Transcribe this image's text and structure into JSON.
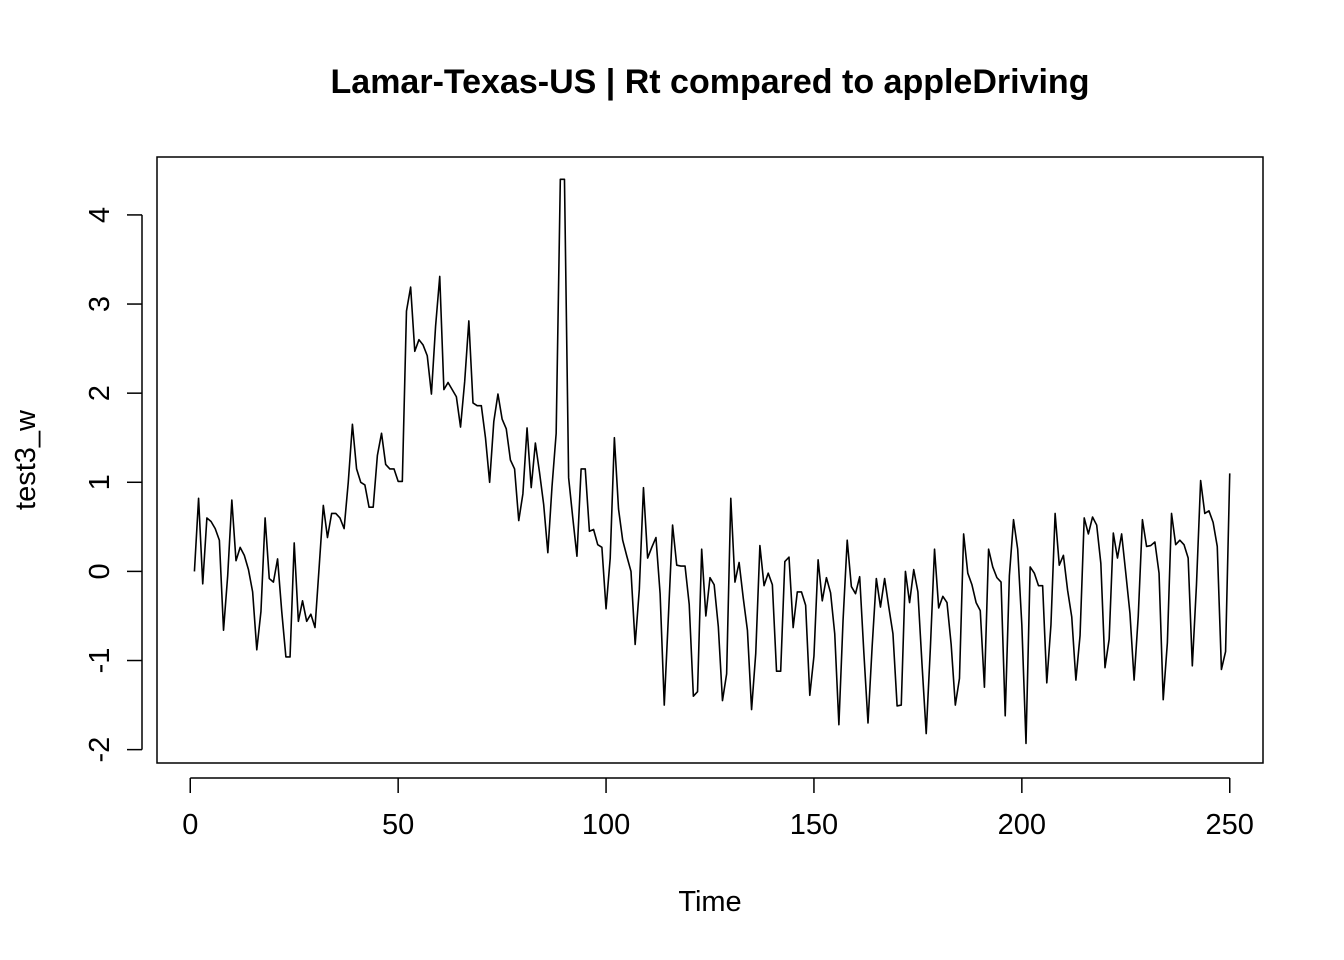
{
  "chart_data": {
    "type": "line",
    "title": "Lamar-Texas-US | Rt compared to appleDriving",
    "xlabel": "Time",
    "ylabel": "test3_w",
    "xlim": [
      -8,
      258
    ],
    "ylim": [
      -2.15,
      4.65
    ],
    "x_ticks": [
      "0",
      "50",
      "100",
      "150",
      "200",
      "250"
    ],
    "y_ticks": [
      "-2",
      "-1",
      "0",
      "1",
      "2",
      "3",
      "4"
    ],
    "grid": false,
    "series": [
      {
        "color": "#000000",
        "x_start": 1,
        "values": [
          0.0,
          0.82,
          -0.14,
          0.6,
          0.56,
          0.48,
          0.35,
          -0.66,
          -0.05,
          0.8,
          0.12,
          0.27,
          0.18,
          0.02,
          -0.23,
          -0.88,
          -0.45,
          0.6,
          -0.08,
          -0.12,
          0.14,
          -0.45,
          -0.96,
          -0.96,
          0.32,
          -0.56,
          -0.33,
          -0.56,
          -0.48,
          -0.63,
          0.05,
          0.74,
          0.38,
          0.65,
          0.65,
          0.6,
          0.48,
          1.0,
          1.65,
          1.15,
          1.0,
          0.97,
          0.72,
          0.72,
          1.3,
          1.55,
          1.2,
          1.15,
          1.15,
          1.01,
          1.01,
          2.92,
          3.19,
          2.47,
          2.6,
          2.54,
          2.42,
          1.99,
          2.75,
          3.31,
          2.04,
          2.12,
          2.04,
          1.96,
          1.62,
          2.13,
          2.81,
          1.89,
          1.86,
          1.86,
          1.5,
          1.0,
          1.68,
          1.99,
          1.71,
          1.6,
          1.25,
          1.15,
          0.57,
          0.87,
          1.61,
          0.94,
          1.44,
          1.11,
          0.75,
          0.21,
          0.95,
          1.55,
          4.4,
          4.4,
          1.05,
          0.6,
          0.17,
          1.15,
          1.15,
          0.45,
          0.47,
          0.3,
          0.27,
          -0.42,
          0.15,
          1.5,
          0.7,
          0.35,
          0.17,
          0.0,
          -0.82,
          -0.2,
          0.94,
          0.15,
          0.27,
          0.38,
          -0.25,
          -1.5,
          -0.5,
          0.52,
          0.07,
          0.06,
          0.06,
          -0.37,
          -1.4,
          -1.35,
          0.25,
          -0.5,
          -0.07,
          -0.15,
          -0.62,
          -1.45,
          -1.15,
          0.82,
          -0.12,
          0.1,
          -0.3,
          -0.66,
          -1.55,
          -0.92,
          0.29,
          -0.16,
          -0.02,
          -0.15,
          -1.12,
          -1.12,
          0.11,
          0.16,
          -0.63,
          -0.23,
          -0.23,
          -0.38,
          -1.39,
          -0.95,
          0.13,
          -0.33,
          -0.07,
          -0.24,
          -0.7,
          -1.72,
          -0.55,
          0.35,
          -0.17,
          -0.25,
          -0.06,
          -0.91,
          -1.7,
          -0.84,
          -0.08,
          -0.4,
          -0.08,
          -0.4,
          -0.7,
          -1.51,
          -1.5,
          0.0,
          -0.35,
          0.02,
          -0.23,
          -1.05,
          -1.82,
          -0.86,
          0.25,
          -0.41,
          -0.28,
          -0.35,
          -0.82,
          -1.5,
          -1.2,
          0.42,
          -0.02,
          -0.15,
          -0.35,
          -0.44,
          -1.3,
          0.25,
          0.05,
          -0.07,
          -0.12,
          -1.62,
          -0.05,
          0.58,
          0.25,
          -0.6,
          -1.93,
          0.05,
          -0.02,
          -0.16,
          -0.16,
          -1.25,
          -0.6,
          0.65,
          0.07,
          0.18,
          -0.21,
          -0.51,
          -1.22,
          -0.72,
          0.6,
          0.42,
          0.61,
          0.52,
          0.09,
          -1.08,
          -0.76,
          0.43,
          0.15,
          0.42,
          -0.02,
          -0.47,
          -1.22,
          -0.5,
          0.58,
          0.28,
          0.29,
          0.33,
          -0.02,
          -1.44,
          -0.8,
          0.65,
          0.3,
          0.35,
          0.3,
          0.15,
          -1.06,
          -0.15,
          1.02,
          0.65,
          0.68,
          0.55,
          0.28,
          -1.1,
          -0.9,
          1.1
        ]
      }
    ]
  }
}
